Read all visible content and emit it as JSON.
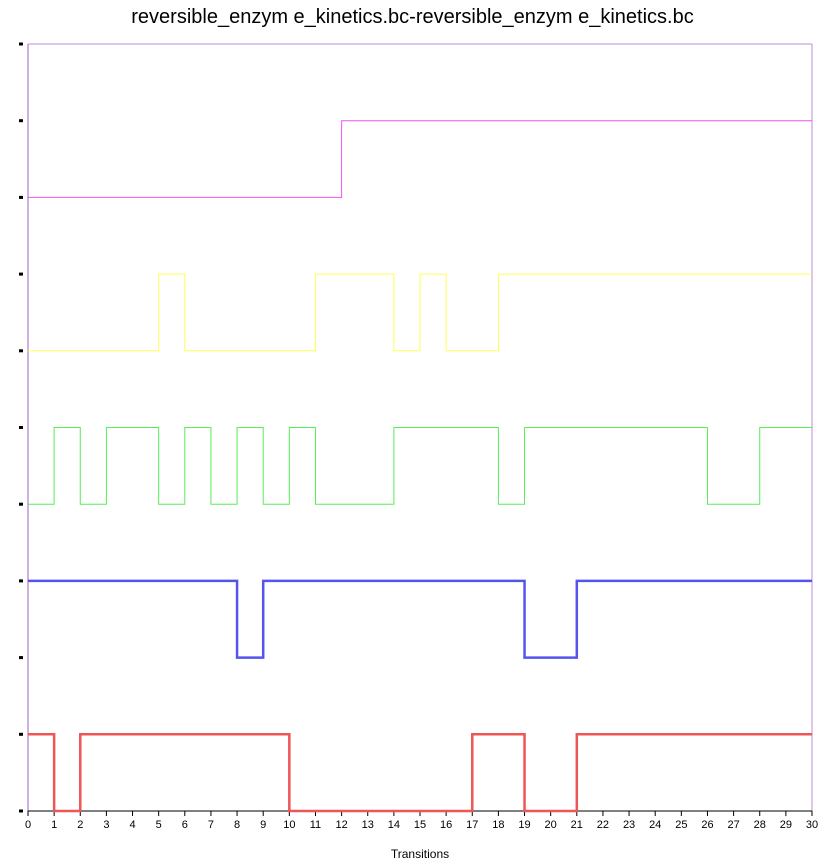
{
  "chart_data": {
    "type": "line",
    "title": "reversible_enzym e_kinetics.bc-reversible_enzym e_kinetics.bc",
    "xlabel": "Transitions",
    "ylabel": "",
    "xlim": [
      0,
      30
    ],
    "x_ticks": [
      "0",
      "1",
      "2",
      "3",
      "4",
      "5",
      "6",
      "7",
      "8",
      "9",
      "10",
      "11",
      "12",
      "13",
      "14",
      "15",
      "16",
      "17",
      "18",
      "19",
      "20",
      "21",
      "22",
      "23",
      "24",
      "25",
      "26",
      "27",
      "28",
      "29",
      "30"
    ],
    "y_ticks_count": 11,
    "grid": false,
    "step": true,
    "series": [
      {
        "color": "#ee55ee",
        "lane": 4,
        "values": [
          0,
          0,
          0,
          0,
          0,
          0,
          0,
          0,
          0,
          0,
          0,
          0,
          1,
          1,
          1,
          1,
          1,
          1,
          1,
          1,
          1,
          1,
          1,
          1,
          1,
          1,
          1,
          1,
          1,
          1,
          1
        ]
      },
      {
        "color": "#ffff55",
        "lane": 3,
        "values": [
          0,
          0,
          0,
          0,
          0,
          1,
          0,
          0,
          0,
          0,
          0,
          1,
          1,
          1,
          0,
          1,
          0,
          0,
          1,
          1,
          1,
          1,
          1,
          1,
          1,
          1,
          1,
          1,
          1,
          1,
          1
        ]
      },
      {
        "color": "#55ee55",
        "lane": 2,
        "values": [
          0,
          1,
          0,
          1,
          1,
          0,
          1,
          0,
          1,
          0,
          1,
          0,
          0,
          0,
          1,
          1,
          1,
          1,
          0,
          1,
          1,
          1,
          1,
          1,
          1,
          1,
          0,
          0,
          1,
          1,
          1
        ]
      },
      {
        "color": "#5555ee",
        "lane": 1,
        "values": [
          1,
          1,
          1,
          1,
          1,
          1,
          1,
          1,
          0,
          1,
          1,
          1,
          1,
          1,
          1,
          1,
          1,
          1,
          1,
          0,
          0,
          1,
          1,
          1,
          1,
          1,
          1,
          1,
          1,
          1,
          1
        ]
      },
      {
        "color": "#ee5555",
        "lane": 0,
        "values": [
          1,
          0,
          1,
          1,
          1,
          1,
          1,
          1,
          1,
          1,
          0,
          0,
          0,
          0,
          0,
          0,
          0,
          1,
          1,
          0,
          0,
          1,
          1,
          1,
          1,
          1,
          1,
          1,
          1,
          1,
          1
        ]
      }
    ]
  }
}
